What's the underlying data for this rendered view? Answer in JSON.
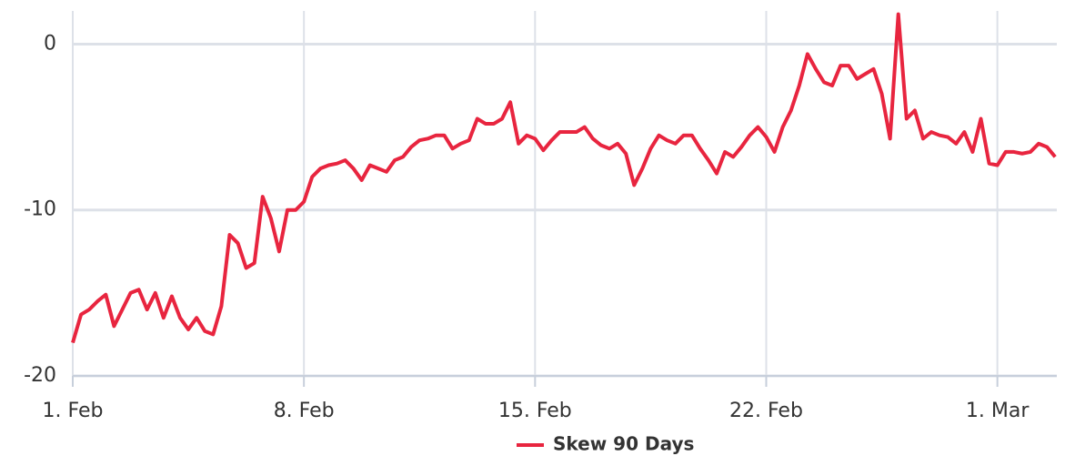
{
  "chart_data": {
    "type": "line",
    "x": [
      1,
      1.25,
      1.5,
      1.75,
      2,
      2.25,
      2.5,
      2.75,
      3,
      3.25,
      3.5,
      3.75,
      4,
      4.25,
      4.5,
      4.75,
      5,
      5.25,
      5.5,
      5.75,
      6,
      6.25,
      6.5,
      6.75,
      7,
      7.25,
      7.5,
      7.75,
      8,
      8.25,
      8.5,
      8.75,
      9,
      9.25,
      9.5,
      9.75,
      10,
      10.25,
      10.5,
      10.75,
      11,
      11.25,
      11.5,
      11.75,
      12,
      12.25,
      12.5,
      12.75,
      13,
      13.25,
      13.5,
      13.75,
      14,
      14.25,
      14.5,
      14.75,
      15,
      15.25,
      15.5,
      15.75,
      16,
      16.25,
      16.5,
      16.75,
      17,
      17.25,
      17.5,
      17.75,
      18,
      18.25,
      18.5,
      18.75,
      19,
      19.25,
      19.5,
      19.75,
      20,
      20.25,
      20.5,
      20.75,
      21,
      21.25,
      21.5,
      21.75,
      22,
      22.25,
      22.5,
      22.75,
      23,
      23.25,
      23.5,
      23.75,
      24,
      24.25,
      24.5,
      24.75,
      25,
      25.25,
      25.5,
      25.75,
      26,
      26.25,
      26.5,
      26.75,
      27,
      27.25,
      27.5,
      27.75,
      28,
      28.25,
      28.5,
      28.75,
      29,
      29.25,
      29.5,
      29.75,
      30,
      30.25,
      30.5,
      30.75
    ],
    "series": [
      {
        "name": "Skew 90 Days",
        "color": "#e8253f",
        "values": [
          -18,
          -16.3,
          -16,
          -15.5,
          -15.1,
          -17,
          -16,
          -15,
          -14.8,
          -16,
          -15,
          -16.5,
          -15.2,
          -16.5,
          -17.2,
          -16.5,
          -17.3,
          -17.5,
          -15.8,
          -11.5,
          -12,
          -13.5,
          -13.2,
          -9.2,
          -10.5,
          -12.5,
          -10,
          -10,
          -9.5,
          -8,
          -7.5,
          -7.3,
          -7.2,
          -7,
          -7.5,
          -8.2,
          -7.3,
          -7.5,
          -7.7,
          -7,
          -6.8,
          -6.2,
          -5.8,
          -5.7,
          -5.5,
          -5.5,
          -6.3,
          -6,
          -5.8,
          -4.5,
          -4.8,
          -4.8,
          -4.5,
          -3.5,
          -6,
          -5.5,
          -5.7,
          -6.4,
          -5.8,
          -5.3,
          -5.3,
          -5.3,
          -5,
          -5.7,
          -6.1,
          -6.3,
          -6,
          -6.6,
          -8.5,
          -7.5,
          -6.3,
          -5.5,
          -5.8,
          -6,
          -5.5,
          -5.5,
          -6.3,
          -7,
          -7.8,
          -6.5,
          -6.8,
          -6.2,
          -5.5,
          -5,
          -5.6,
          -6.5,
          -5,
          -4,
          -2.5,
          -0.6,
          -1.5,
          -2.3,
          -2.5,
          -1.3,
          -1.3,
          -2.1,
          -1.8,
          -1.5,
          -3,
          -5.7,
          1.8,
          -4.5,
          -4,
          -5.7,
          -5.3,
          -5.5,
          -5.6,
          -6,
          -5.3,
          -6.5,
          -4.5,
          -7.2,
          -7.3,
          -6.5,
          -6.5,
          -6.6,
          -6.5,
          -6,
          -6.2,
          -6.8
        ]
      }
    ],
    "xlim": [
      1,
      30.8
    ],
    "xticks": [
      {
        "value": 1,
        "label": "1. Feb"
      },
      {
        "value": 8,
        "label": "8. Feb"
      },
      {
        "value": 15,
        "label": "15. Feb"
      },
      {
        "value": 22,
        "label": "22. Feb"
      },
      {
        "value": 29,
        "label": "1. Mar"
      }
    ],
    "ylim": [
      -20,
      2
    ],
    "yticks": [
      -20,
      -10,
      0
    ],
    "grid": true,
    "legend": "bottom"
  }
}
